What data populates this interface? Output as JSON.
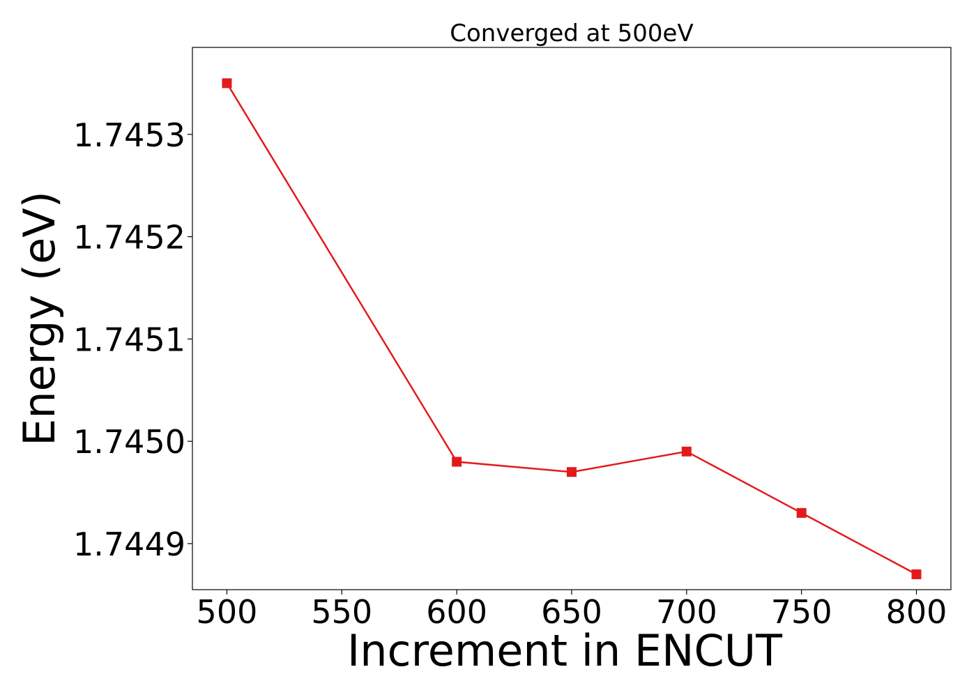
{
  "chart_data": {
    "type": "line",
    "title": "Converged at 500eV",
    "xlabel": "Increment in ENCUT",
    "ylabel": "Energy (eV)",
    "x": [
      500,
      600,
      650,
      700,
      750,
      800
    ],
    "series": [
      {
        "values": [
          1.74535,
          1.74498,
          1.74497,
          1.74499,
          1.74493,
          1.74487
        ],
        "color": "#e31a1c",
        "marker": "square"
      }
    ],
    "xticks": [
      500,
      550,
      600,
      650,
      700,
      750,
      800
    ],
    "xtick_labels": [
      "500",
      "550",
      "600",
      "650",
      "700",
      "750",
      "800"
    ],
    "yticks": [
      1.7449,
      1.745,
      1.7451,
      1.7452,
      1.7453
    ],
    "ytick_labels": [
      "1.7449",
      "1.7450",
      "1.7451",
      "1.7452",
      "1.7453"
    ],
    "xlim": [
      485,
      815
    ],
    "ylim": [
      1.744855,
      1.745385
    ],
    "grid": false,
    "legend": false
  }
}
